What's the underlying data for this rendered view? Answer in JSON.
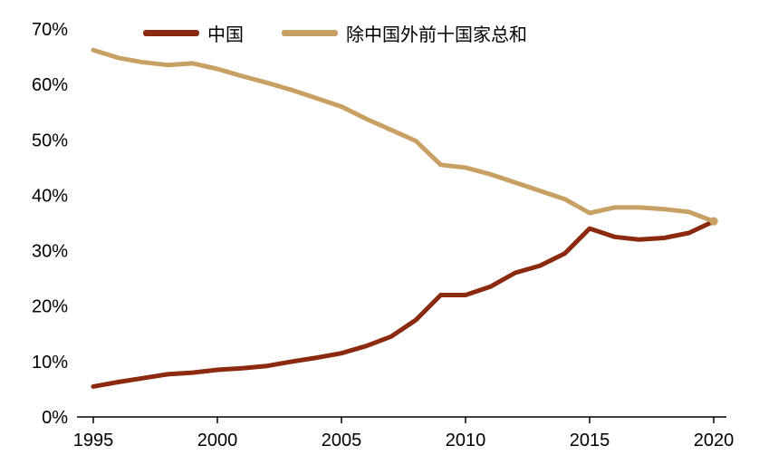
{
  "chart_data": {
    "type": "line",
    "title": "",
    "xlabel": "",
    "ylabel": "",
    "x_range": [
      1995,
      2020
    ],
    "y_range": [
      0,
      70
    ],
    "grid": false,
    "legend_position": "top",
    "axis_color": "#000000",
    "x_ticks": [
      "1995",
      "2000",
      "2005",
      "2010",
      "2015",
      "2020"
    ],
    "x_tick_years": [
      1995,
      2000,
      2005,
      2010,
      2015,
      2020
    ],
    "y_ticks": [
      "0%",
      "10%",
      "20%",
      "30%",
      "40%",
      "50%",
      "60%",
      "70%"
    ],
    "y_tick_values": [
      0,
      10,
      20,
      30,
      40,
      50,
      60,
      70
    ],
    "x": [
      1995,
      1996,
      1997,
      1998,
      1999,
      2000,
      2001,
      2002,
      2003,
      2004,
      2005,
      2006,
      2007,
      2008,
      2009,
      2010,
      2011,
      2012,
      2013,
      2014,
      2015,
      2016,
      2017,
      2018,
      2019,
      2020
    ],
    "series": [
      {
        "name": "中国",
        "color": "#8B2A0F",
        "end_marker": true,
        "values": [
          5.5,
          6.3,
          7.0,
          7.7,
          8.0,
          8.5,
          8.8,
          9.2,
          10.0,
          10.7,
          11.5,
          12.8,
          14.5,
          17.5,
          22.0,
          22.0,
          23.5,
          26.0,
          27.3,
          29.5,
          34.0,
          32.5,
          32.0,
          32.3,
          33.2,
          35.3
        ]
      },
      {
        "name": "除中国外前十国家总和",
        "color": "#C9A063",
        "end_marker": true,
        "values": [
          66.2,
          64.8,
          64.0,
          63.5,
          63.8,
          62.8,
          61.5,
          60.3,
          59.0,
          57.5,
          56.0,
          53.8,
          51.8,
          49.8,
          45.5,
          45.0,
          43.8,
          42.3,
          40.8,
          39.3,
          36.8,
          37.8,
          37.8,
          37.5,
          37.0,
          35.3
        ]
      }
    ]
  }
}
